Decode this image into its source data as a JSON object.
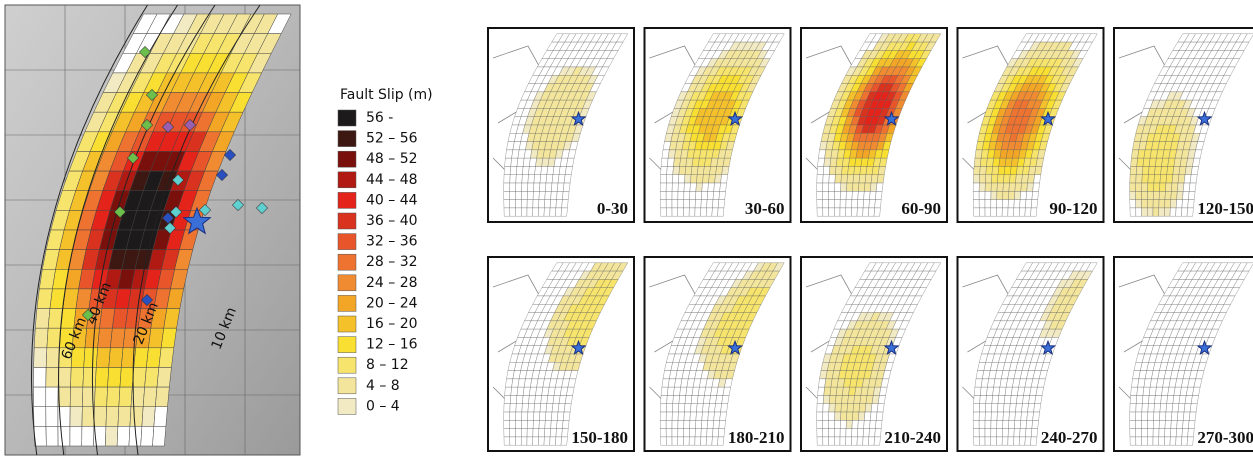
{
  "main_map": {
    "contour_labels": [
      "60 km",
      "40 km",
      "20 km",
      "10 km"
    ]
  },
  "legend": {
    "title": "Fault Slip (m)",
    "items": [
      {
        "label": "56 -",
        "color": "#1c1a1a"
      },
      {
        "label": "52 – 56",
        "color": "#3d1812"
      },
      {
        "label": "48 – 52",
        "color": "#7a100b"
      },
      {
        "label": "44 – 48",
        "color": "#b01a12"
      },
      {
        "label": "40 – 44",
        "color": "#e4231b"
      },
      {
        "label": "36 – 40",
        "color": "#d9321e"
      },
      {
        "label": "32 – 36",
        "color": "#e9552b"
      },
      {
        "label": "28 – 32",
        "color": "#ee7330"
      },
      {
        "label": "24 – 28",
        "color": "#f08b31"
      },
      {
        "label": "20 – 24",
        "color": "#f3a626"
      },
      {
        "label": "16 – 20",
        "color": "#f5c12b"
      },
      {
        "label": "12 – 16",
        "color": "#f8df31"
      },
      {
        "label": "8 – 12",
        "color": "#f6e46c"
      },
      {
        "label": "4 –  8",
        "color": "#f3e69c"
      },
      {
        "label": "0 –  4",
        "color": "#f2eac3"
      }
    ]
  },
  "panels": [
    {
      "label": "0-30"
    },
    {
      "label": "30-60"
    },
    {
      "label": "60-90"
    },
    {
      "label": "90-120"
    },
    {
      "label": "120-150"
    },
    {
      "label": "150-180"
    },
    {
      "label": "180-210"
    },
    {
      "label": "210-240"
    },
    {
      "label": "240-270"
    },
    {
      "label": "270-300"
    }
  ]
}
